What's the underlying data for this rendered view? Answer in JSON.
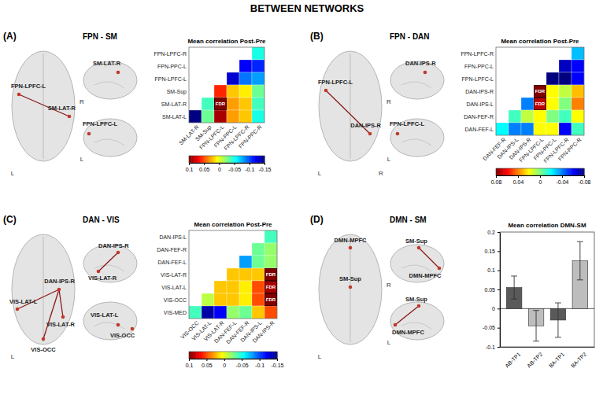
{
  "title": "BETWEEN NETWORKS",
  "chart_data": [
    {
      "type": "heatmap",
      "panel": "(A)",
      "subtitle": "FPN - SM",
      "title": "Mean correlation Post-Pre",
      "rows": [
        "FPN-LPFC-R",
        "FPN-PPC-L",
        "FPN-LPFC-L",
        "SM-Sup",
        "SM-LAT-R",
        "SM-LAT-L"
      ],
      "columns": [
        "SM-LAT-R",
        "SM-Sup",
        "FPN-LPFC-L",
        "FPN-PPC-L",
        "FPN-LPFC-R",
        "FPN-PPC-R"
      ],
      "cells": [
        [
          null,
          null,
          null,
          null,
          null,
          -0.05
        ],
        [
          null,
          null,
          null,
          null,
          -0.12,
          -0.11
        ],
        [
          null,
          null,
          null,
          -0.13,
          -0.09,
          -0.08
        ],
        [
          null,
          null,
          0.06,
          0.02,
          0.01,
          -0.03
        ],
        [
          null,
          -0.04,
          0.1,
          0.03,
          0.02,
          -0.04
        ],
        [
          -0.15,
          -0.03,
          0.09,
          0.03,
          0.02,
          -0.05
        ]
      ],
      "annotations": [
        {
          "text": "FDR",
          "row": 4,
          "column": 2
        }
      ],
      "colorbar": {
        "range": [
          -0.15,
          0.1
        ],
        "ticks": [
          0.1,
          0.05,
          0,
          -0.05,
          -0.1,
          -0.15
        ]
      },
      "brain_views": [
        {
          "labels": [
            "L"
          ],
          "nodes": [
            "FPN-LPFC-L",
            "SM-LAT-R"
          ],
          "edges": [
            [
              0,
              1
            ]
          ]
        },
        {
          "labels": [
            "R"
          ],
          "nodes": [
            "SM-LAT-R"
          ],
          "edges": []
        },
        {
          "labels": [
            "L"
          ],
          "nodes": [
            "FPN-LPFC-L"
          ],
          "edges": []
        }
      ]
    },
    {
      "type": "heatmap",
      "panel": "(B)",
      "subtitle": "FPN - DAN",
      "title": "Mean correlation Post-Pre",
      "rows": [
        "FPN-LPFC-R",
        "FPN-PPC-L",
        "FPN-LPFC-L",
        "DAN-IPS-R",
        "DAN-IPS-L",
        "DAN-FEF-R",
        "DAN-FEF-L"
      ],
      "columns": [
        "DAN-FEF-R",
        "DAN-IPS-L",
        "DAN-IPS-R",
        "FPN-LPFC-L",
        "FPN-PPC-L",
        "FPN-LPFC-R",
        "FPN-PPC-R"
      ],
      "cells": [
        [
          null,
          null,
          null,
          null,
          null,
          null,
          -0.03
        ],
        [
          null,
          null,
          null,
          null,
          null,
          -0.07,
          -0.06
        ],
        [
          null,
          null,
          null,
          null,
          -0.08,
          -0.08,
          -0.06
        ],
        [
          null,
          null,
          null,
          0.08,
          0.02,
          0.01,
          0.03
        ],
        [
          null,
          null,
          -0.04,
          0.07,
          0.02,
          0,
          0.04
        ],
        [
          null,
          -0.01,
          0.01,
          0.02,
          0,
          -0.01,
          0.02
        ],
        [
          -0.02,
          -0.04,
          -0.04,
          0.02,
          0.02,
          -0.06,
          -0.01
        ]
      ],
      "annotations": [
        {
          "text": "FDR",
          "row": 3,
          "column": 3
        },
        {
          "text": "FDR",
          "row": 4,
          "column": 3
        }
      ],
      "colorbar": {
        "range": [
          -0.08,
          0.08
        ],
        "ticks": [
          0.08,
          0.04,
          0,
          -0.04,
          -0.08
        ]
      },
      "brain_views": [
        {
          "labels": [
            "L",
            "R"
          ],
          "nodes": [
            "FPN-LPFC-L",
            "DAN-IPS-R"
          ],
          "edges": [
            [
              0,
              1
            ]
          ]
        },
        {
          "labels": [
            "R"
          ],
          "nodes": [
            "DAN-IPS-R"
          ],
          "edges": []
        },
        {
          "labels": [
            "L"
          ],
          "nodes": [
            "FPN-LPFC-L"
          ],
          "edges": []
        }
      ]
    },
    {
      "type": "heatmap",
      "panel": "(C)",
      "subtitle": "DAN - VIS",
      "title": "Mean correlation Post-Pre",
      "rows": [
        "DAN-IPS-L",
        "DAN-FEF-R",
        "DAN-FEF-L",
        "VIS-LAT-R",
        "VIS-LAT-L",
        "VIS-OCC",
        "VIS-MED"
      ],
      "columns": [
        "VIS-OCC",
        "VIS-LAT-L",
        "VIS-LAT-R",
        "DAN-FEF-L",
        "DAN-FEF-R",
        "DAN-IPS-L",
        "DAN-IPS-R"
      ],
      "cells": [
        [
          null,
          null,
          null,
          null,
          null,
          null,
          -0.04
        ],
        [
          null,
          null,
          null,
          null,
          null,
          -0.03,
          -0.02
        ],
        [
          null,
          null,
          null,
          null,
          -0.08,
          -0.03,
          -0.02
        ],
        [
          null,
          null,
          null,
          0.02,
          0.02,
          0.02,
          0.1
        ],
        [
          null,
          null,
          0.02,
          0.02,
          0.01,
          0.05,
          0.09
        ],
        [
          null,
          -0.01,
          0.02,
          0.02,
          0.01,
          0.05,
          0.1
        ],
        [
          -0.04,
          -0.14,
          -0.12,
          -0.02,
          -0.03,
          0.02,
          0.05
        ]
      ],
      "annotations": [
        {
          "text": "FDR",
          "row": 3,
          "column": 6
        },
        {
          "text": "FDR",
          "row": 4,
          "column": 6
        },
        {
          "text": "FDR",
          "row": 5,
          "column": 6
        }
      ],
      "colorbar": {
        "range": [
          -0.15,
          0.1
        ],
        "ticks": [
          0.1,
          0.05,
          0,
          -0.05,
          -0.1,
          -0.15
        ]
      },
      "brain_views": [
        {
          "labels": [
            "L"
          ],
          "nodes": [
            "VIS-LAT-L",
            "DAN-IPS-R",
            "VIS-LAT-R",
            "VIS-OCC"
          ],
          "edges": [
            [
              1,
              0
            ],
            [
              1,
              2
            ],
            [
              1,
              3
            ]
          ]
        },
        {
          "labels": [],
          "nodes": [
            "DAN-IPS-R",
            "VIS-LAT-R"
          ],
          "edges": [
            [
              0,
              1
            ]
          ]
        },
        {
          "labels": [],
          "nodes": [
            "VIS-LAT-L",
            "VIS-OCC"
          ],
          "edges": []
        }
      ]
    },
    {
      "type": "bar",
      "panel": "(D)",
      "subtitle": "DMN - SM",
      "title": "Mean correlation DMN-SM",
      "categories": [
        "AB-TP1",
        "AB-TP2",
        "BA-TP1",
        "BA-TP2"
      ],
      "values": [
        0.055,
        -0.045,
        -0.03,
        0.125
      ],
      "errors": [
        0.03,
        0.04,
        0.045,
        0.05
      ],
      "colors": [
        "#5a5a5a",
        "#bdbdbd",
        "#5a5a5a",
        "#bdbdbd"
      ],
      "ylim": [
        -0.1,
        0.2
      ],
      "yticks": [
        -0.1,
        -0.05,
        0,
        0.05,
        0.1,
        0.15,
        0.2
      ],
      "brain_views": [
        {
          "labels": [
            "L"
          ],
          "nodes": [
            "DMN-MPFC",
            "SM-Sup"
          ],
          "edges": []
        },
        {
          "labels": [
            "R"
          ],
          "nodes": [
            "SM-Sup",
            "DMN-MPFC"
          ],
          "edges": [
            [
              0,
              1
            ]
          ]
        },
        {
          "labels": [
            "L"
          ],
          "nodes": [
            "SM-Sup",
            "DMN-MPFC"
          ],
          "edges": [
            [
              0,
              1
            ]
          ]
        }
      ]
    }
  ]
}
